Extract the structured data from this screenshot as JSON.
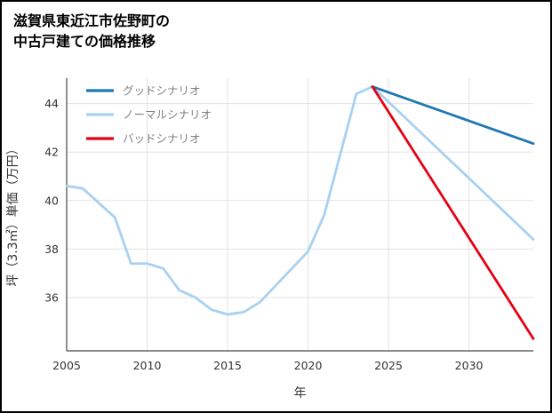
{
  "title": {
    "line1": "滋賀県東近江市佐野町の",
    "line2": "中古戸建ての価格推移"
  },
  "chart_data": {
    "type": "line",
    "title": "滋賀県東近江市佐野町の中古戸建ての価格推移",
    "xlabel": "年",
    "ylabel": "坪（3.3㎡）単価（万円）",
    "xlim": [
      2005,
      2034
    ],
    "ylim": [
      33.8,
      45.05
    ],
    "xticks": [
      2005,
      2010,
      2015,
      2020,
      2025,
      2030
    ],
    "yticks": [
      36,
      38,
      40,
      42,
      44
    ],
    "grid": true,
    "legend_position": "upper-left",
    "colors": {
      "grid": "#e3e3e3",
      "spine": "#444444",
      "tick_label": "#333333",
      "legend_text": "#808080",
      "background": "#ffffff"
    },
    "draw_order": [
      1,
      0,
      2
    ],
    "series": [
      {
        "name": "グッドシナリオ",
        "color": "#1f77b4",
        "width": 2.8,
        "x": [
          2024,
          2034
        ],
        "y": [
          44.7,
          42.35
        ]
      },
      {
        "name": "ノーマルシナリオ",
        "color": "#a8d1f0",
        "width": 2.8,
        "x": [
          2005,
          2006,
          2007,
          2008,
          2009,
          2010,
          2011,
          2012,
          2013,
          2014,
          2015,
          2016,
          2017,
          2018,
          2019,
          2020,
          2021,
          2022,
          2023,
          2024,
          2034
        ],
        "y": [
          40.6,
          40.5,
          39.9,
          39.3,
          37.4,
          37.4,
          37.2,
          36.3,
          36.0,
          35.5,
          35.3,
          35.4,
          35.8,
          36.5,
          37.2,
          37.9,
          39.4,
          41.9,
          44.4,
          44.7,
          38.4
        ]
      },
      {
        "name": "バッドシナリオ",
        "color": "#e60012",
        "width": 2.8,
        "x": [
          2024,
          2034
        ],
        "y": [
          44.7,
          34.3
        ]
      }
    ]
  }
}
